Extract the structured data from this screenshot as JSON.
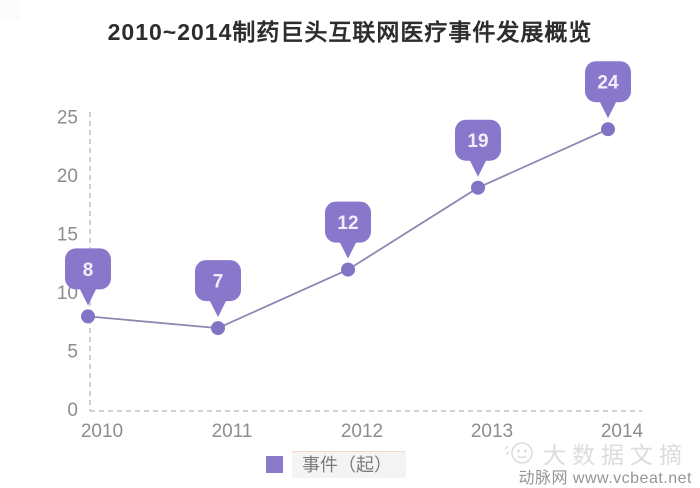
{
  "title": "2010~2014制药巨头互联网医疗事件发展概览",
  "chart_data": {
    "type": "line",
    "title": "2010~2014制药巨头互联网医疗事件发展概览",
    "categories": [
      "2010",
      "2011",
      "2012",
      "2013",
      "2014"
    ],
    "series": [
      {
        "name": "事件（起）",
        "values": [
          8,
          7,
          12,
          19,
          24
        ]
      }
    ],
    "ylim": [
      0,
      25
    ],
    "yticks": [
      0,
      5,
      10,
      15,
      20,
      25
    ],
    "xlabel": "",
    "ylabel": "",
    "grid": false,
    "axis_style": "dashed",
    "data_labels": true,
    "data_label_style": "purple callout bubble above each point",
    "legend_position": "bottom-center"
  },
  "legend": {
    "label": "事件（起）"
  },
  "watermarks": {
    "digest": "大数据文摘",
    "source": "动脉网 www.vcbeat.net"
  },
  "colors": {
    "bubble": "#8977cb",
    "bubble_text": "#f1eef9",
    "dot": "#8273c5",
    "line": "#8d87b3",
    "axis": "#c2c2c2",
    "tick_label": "#8d8d8d",
    "title_text": "#2d2d2d",
    "legend_swatch": "#8a7ac9",
    "legend_text": "#7c7c7c",
    "legend_bg": "#f4f4f4",
    "watermark_light": "#dcdcdc",
    "watermark_gray": "#959595"
  }
}
